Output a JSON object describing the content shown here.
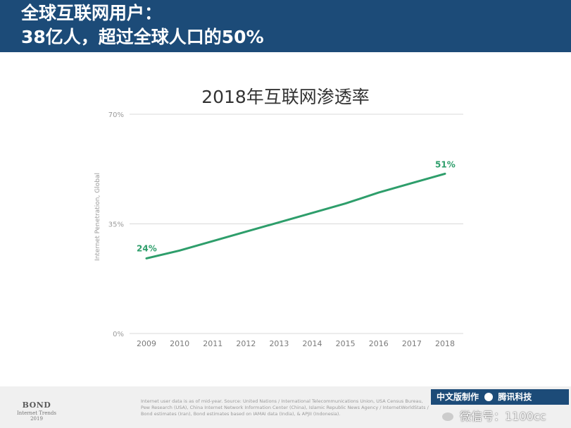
{
  "header": {
    "line1": "全球互联网用户：",
    "line2": "38亿人，超过全球人口的50%"
  },
  "chart_data": {
    "type": "line",
    "title": "2018年互联网渗透率",
    "ylabel": "Internet Penetration, Global",
    "xlabel": "",
    "categories": [
      "2009",
      "2010",
      "2011",
      "2012",
      "2013",
      "2014",
      "2015",
      "2016",
      "2017",
      "2018"
    ],
    "series": [
      {
        "values": [
          24,
          26.5,
          29.5,
          32.5,
          35.5,
          38.5,
          41.5,
          45,
          48,
          51
        ]
      }
    ],
    "ylim": [
      0,
      70
    ],
    "y_ticks": [
      "0%",
      "35%",
      "70%"
    ],
    "data_labels": [
      "24%",
      "51%"
    ],
    "grid": true,
    "line_color": "#2e9e6b"
  },
  "footer": {
    "logo_main": "BOND",
    "logo_sub1": "Internet Trends",
    "logo_sub2": "2019",
    "source_text": "Internet user data is as of mid-year. Source: United Nations / International Telecommunications Union, USA Census Bureau, Pew Research (USA), China Internet Network Information Center (China), Islamic Republic News Agency / InternetWorldStats / Bond estimates (Iran), Bond estimates based on IAMAI data (India), & APJII (Indonesia).",
    "badge_text": "中文版制作",
    "badge_brand": "腾讯科技",
    "wechat_text": "微信号：1100cc"
  }
}
